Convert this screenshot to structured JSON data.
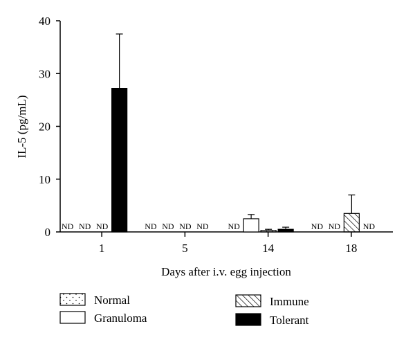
{
  "chart_data": {
    "type": "bar",
    "title": "",
    "xlabel": "Days after i.v. egg injection",
    "ylabel": "IL-5 (pg/mL)",
    "ylim": [
      0,
      40
    ],
    "yticks": [
      0,
      10,
      20,
      30,
      40
    ],
    "categories": [
      "1",
      "5",
      "14",
      "18"
    ],
    "not_detected_label": "ND",
    "grid": false,
    "legend_position": "bottom",
    "series": [
      {
        "name": "Normal",
        "pattern": "dots",
        "color": "#000000",
        "values": [
          null,
          null,
          null,
          null
        ],
        "errors": [
          null,
          null,
          null,
          null
        ]
      },
      {
        "name": "Granuloma",
        "pattern": "open",
        "color": "#000000",
        "values": [
          null,
          null,
          2.5,
          null
        ],
        "errors": [
          null,
          null,
          0.8,
          null
        ]
      },
      {
        "name": "Immune",
        "pattern": "hatch",
        "color": "#000000",
        "values": [
          null,
          null,
          0.3,
          3.5
        ],
        "errors": [
          null,
          null,
          0.2,
          3.5
        ]
      },
      {
        "name": "Tolerant",
        "pattern": "solid",
        "color": "#000000",
        "values": [
          27.2,
          null,
          0.5,
          null
        ],
        "errors": [
          10.3,
          null,
          0.4,
          null
        ]
      }
    ]
  }
}
